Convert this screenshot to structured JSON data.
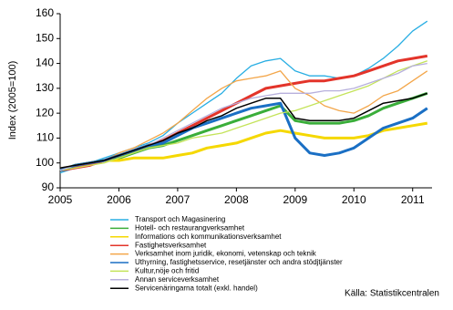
{
  "chart_data": {
    "type": "line",
    "y_label": "Index (2005=100)",
    "source": "Källa: Statistikcentralen",
    "x": [
      2005,
      2005.25,
      2005.5,
      2005.75,
      2006,
      2006.25,
      2006.5,
      2006.75,
      2007,
      2007.25,
      2007.5,
      2007.75,
      2008,
      2008.25,
      2008.5,
      2008.75,
      2009,
      2009.25,
      2009.5,
      2009.75,
      2010,
      2010.25,
      2010.5,
      2010.75,
      2011,
      2011.25
    ],
    "xlim": [
      2005,
      2011.33
    ],
    "xticks": [
      2005,
      2006,
      2007,
      2008,
      2009,
      2010,
      2011
    ],
    "ylim": [
      90,
      160
    ],
    "yticks": [
      90,
      100,
      110,
      120,
      130,
      140,
      150,
      160
    ],
    "series": [
      {
        "name": "Transport och Magasinering",
        "color": "#29aee3",
        "values": [
          96,
          98,
          100,
          102,
          104,
          106,
          108,
          111,
          116,
          120,
          124,
          128,
          134,
          139,
          141,
          142,
          137,
          135,
          135,
          134,
          135,
          138,
          142,
          147,
          153,
          157
        ]
      },
      {
        "name": "Hotell- och restaurangverksamhet",
        "color": "#3aae3a",
        "values": [
          97,
          99,
          100,
          101,
          102,
          104,
          106,
          107,
          109,
          111,
          113,
          115,
          117,
          119,
          121,
          123,
          117,
          116,
          116,
          116,
          117,
          119,
          122,
          124,
          126,
          128
        ]
      },
      {
        "name": "Informations och kommunikationsverksamhet",
        "color": "#f5d800",
        "values": [
          97,
          99,
          100,
          101,
          101,
          102,
          102,
          102,
          103,
          104,
          106,
          107,
          108,
          110,
          112,
          113,
          112,
          111,
          110,
          110,
          110,
          111,
          113,
          114,
          115,
          116
        ]
      },
      {
        "name": "Fastighetsverksamhet",
        "color": "#e3342a",
        "values": [
          97,
          98,
          99,
          101,
          103,
          105,
          107,
          109,
          112,
          115,
          118,
          121,
          124,
          127,
          130,
          131,
          132,
          133,
          133,
          134,
          135,
          137,
          139,
          141,
          142,
          143
        ]
      },
      {
        "name": "Verksamhet inom juridik, ekonomi, vetenskap och teknik",
        "color": "#f3a64a",
        "values": [
          98,
          99,
          100,
          101,
          104,
          106,
          109,
          112,
          116,
          121,
          126,
          130,
          133,
          134,
          135,
          137,
          130,
          127,
          123,
          121,
          120,
          123,
          127,
          129,
          133,
          137
        ]
      },
      {
        "name": "Uthyrning, fastighetsservice, resetjänster och andra stödjtjänster",
        "color": "#1a6fc4",
        "values": [
          97,
          99,
          100,
          101,
          103,
          105,
          107,
          108,
          111,
          114,
          116,
          118,
          120,
          122,
          123,
          124,
          110,
          104,
          103,
          104,
          106,
          110,
          114,
          116,
          118,
          122
        ]
      },
      {
        "name": "Kultur,nöje och fritid",
        "color": "#c4e35a",
        "values": [
          97,
          98,
          99,
          100,
          102,
          104,
          106,
          107,
          108,
          110,
          111,
          112,
          114,
          116,
          118,
          120,
          121,
          123,
          125,
          127,
          129,
          131,
          134,
          137,
          139,
          141
        ]
      },
      {
        "name": "Annan serviceverksamhet",
        "color": "#b7b0dc",
        "values": [
          97,
          99,
          100,
          101,
          103,
          105,
          107,
          110,
          113,
          116,
          119,
          122,
          124,
          126,
          127,
          128,
          128,
          128,
          129,
          129,
          130,
          132,
          134,
          136,
          139,
          140
        ]
      },
      {
        "name": "Servicenäringarna totalt (exkl. handel)",
        "color": "#000000",
        "values": [
          98,
          99,
          100,
          101,
          103,
          105,
          107,
          109,
          112,
          114,
          117,
          119,
          122,
          124,
          126,
          126,
          118,
          117,
          117,
          117,
          118,
          121,
          124,
          125,
          126,
          128
        ]
      }
    ]
  }
}
